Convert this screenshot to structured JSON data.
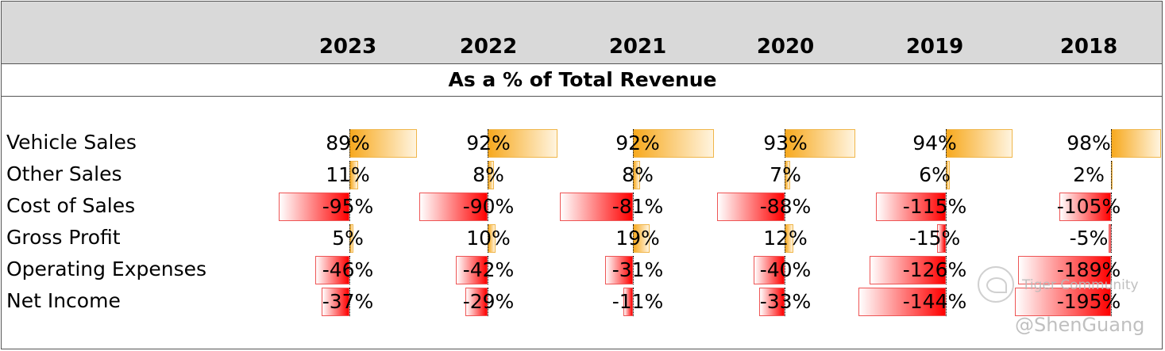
{
  "chart_data": {
    "type": "table",
    "title": "As a % of Total Revenue",
    "years": [
      "2023",
      "2022",
      "2021",
      "2020",
      "2019",
      "2018"
    ],
    "rows": [
      {
        "label": "Vehicle Sales",
        "values": [
          89,
          92,
          92,
          93,
          94,
          98
        ]
      },
      {
        "label": "Other Sales",
        "values": [
          11,
          8,
          8,
          7,
          6,
          2
        ]
      },
      {
        "label": "Cost of Sales",
        "values": [
          -95,
          -90,
          -81,
          -88,
          -115,
          -105
        ]
      },
      {
        "label": "Gross Profit",
        "values": [
          5,
          10,
          19,
          12,
          -15,
          -5
        ]
      },
      {
        "label": "Operating Expenses",
        "values": [
          -46,
          -42,
          -31,
          -40,
          -126,
          -189
        ]
      },
      {
        "label": "Net Income",
        "values": [
          -37,
          -29,
          -11,
          -33,
          -144,
          -195
        ]
      }
    ],
    "value_suffix": "%",
    "colors": {
      "positive": "#f7a91e",
      "negative": "#ff0000",
      "header_bg": "#d9d9d9"
    }
  },
  "watermark": {
    "brand": "Tiger Community",
    "handle": "@ShenGuang"
  }
}
